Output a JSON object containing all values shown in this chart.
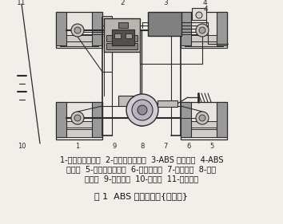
{
  "title": "图 1  ABS 系统的组成{分置式}",
  "caption_line1": "1-前轮速度传感器  2-制动压力调节器  3-ABS 电控单元  4-ABS",
  "caption_line2": "警告灯  5-后轮速度传感器  6-停车灯开关  7-制动主缸  8-比例",
  "caption_line3": "分配阀  9-制动轮缸  10-蓄电池  11-点火开关",
  "bg_color": "#f2efea",
  "line_color": "#2a2a2a",
  "font_size_caption": 7.0,
  "font_size_title": 8.0,
  "figwidth": 3.54,
  "figheight": 2.81,
  "dpi": 100
}
